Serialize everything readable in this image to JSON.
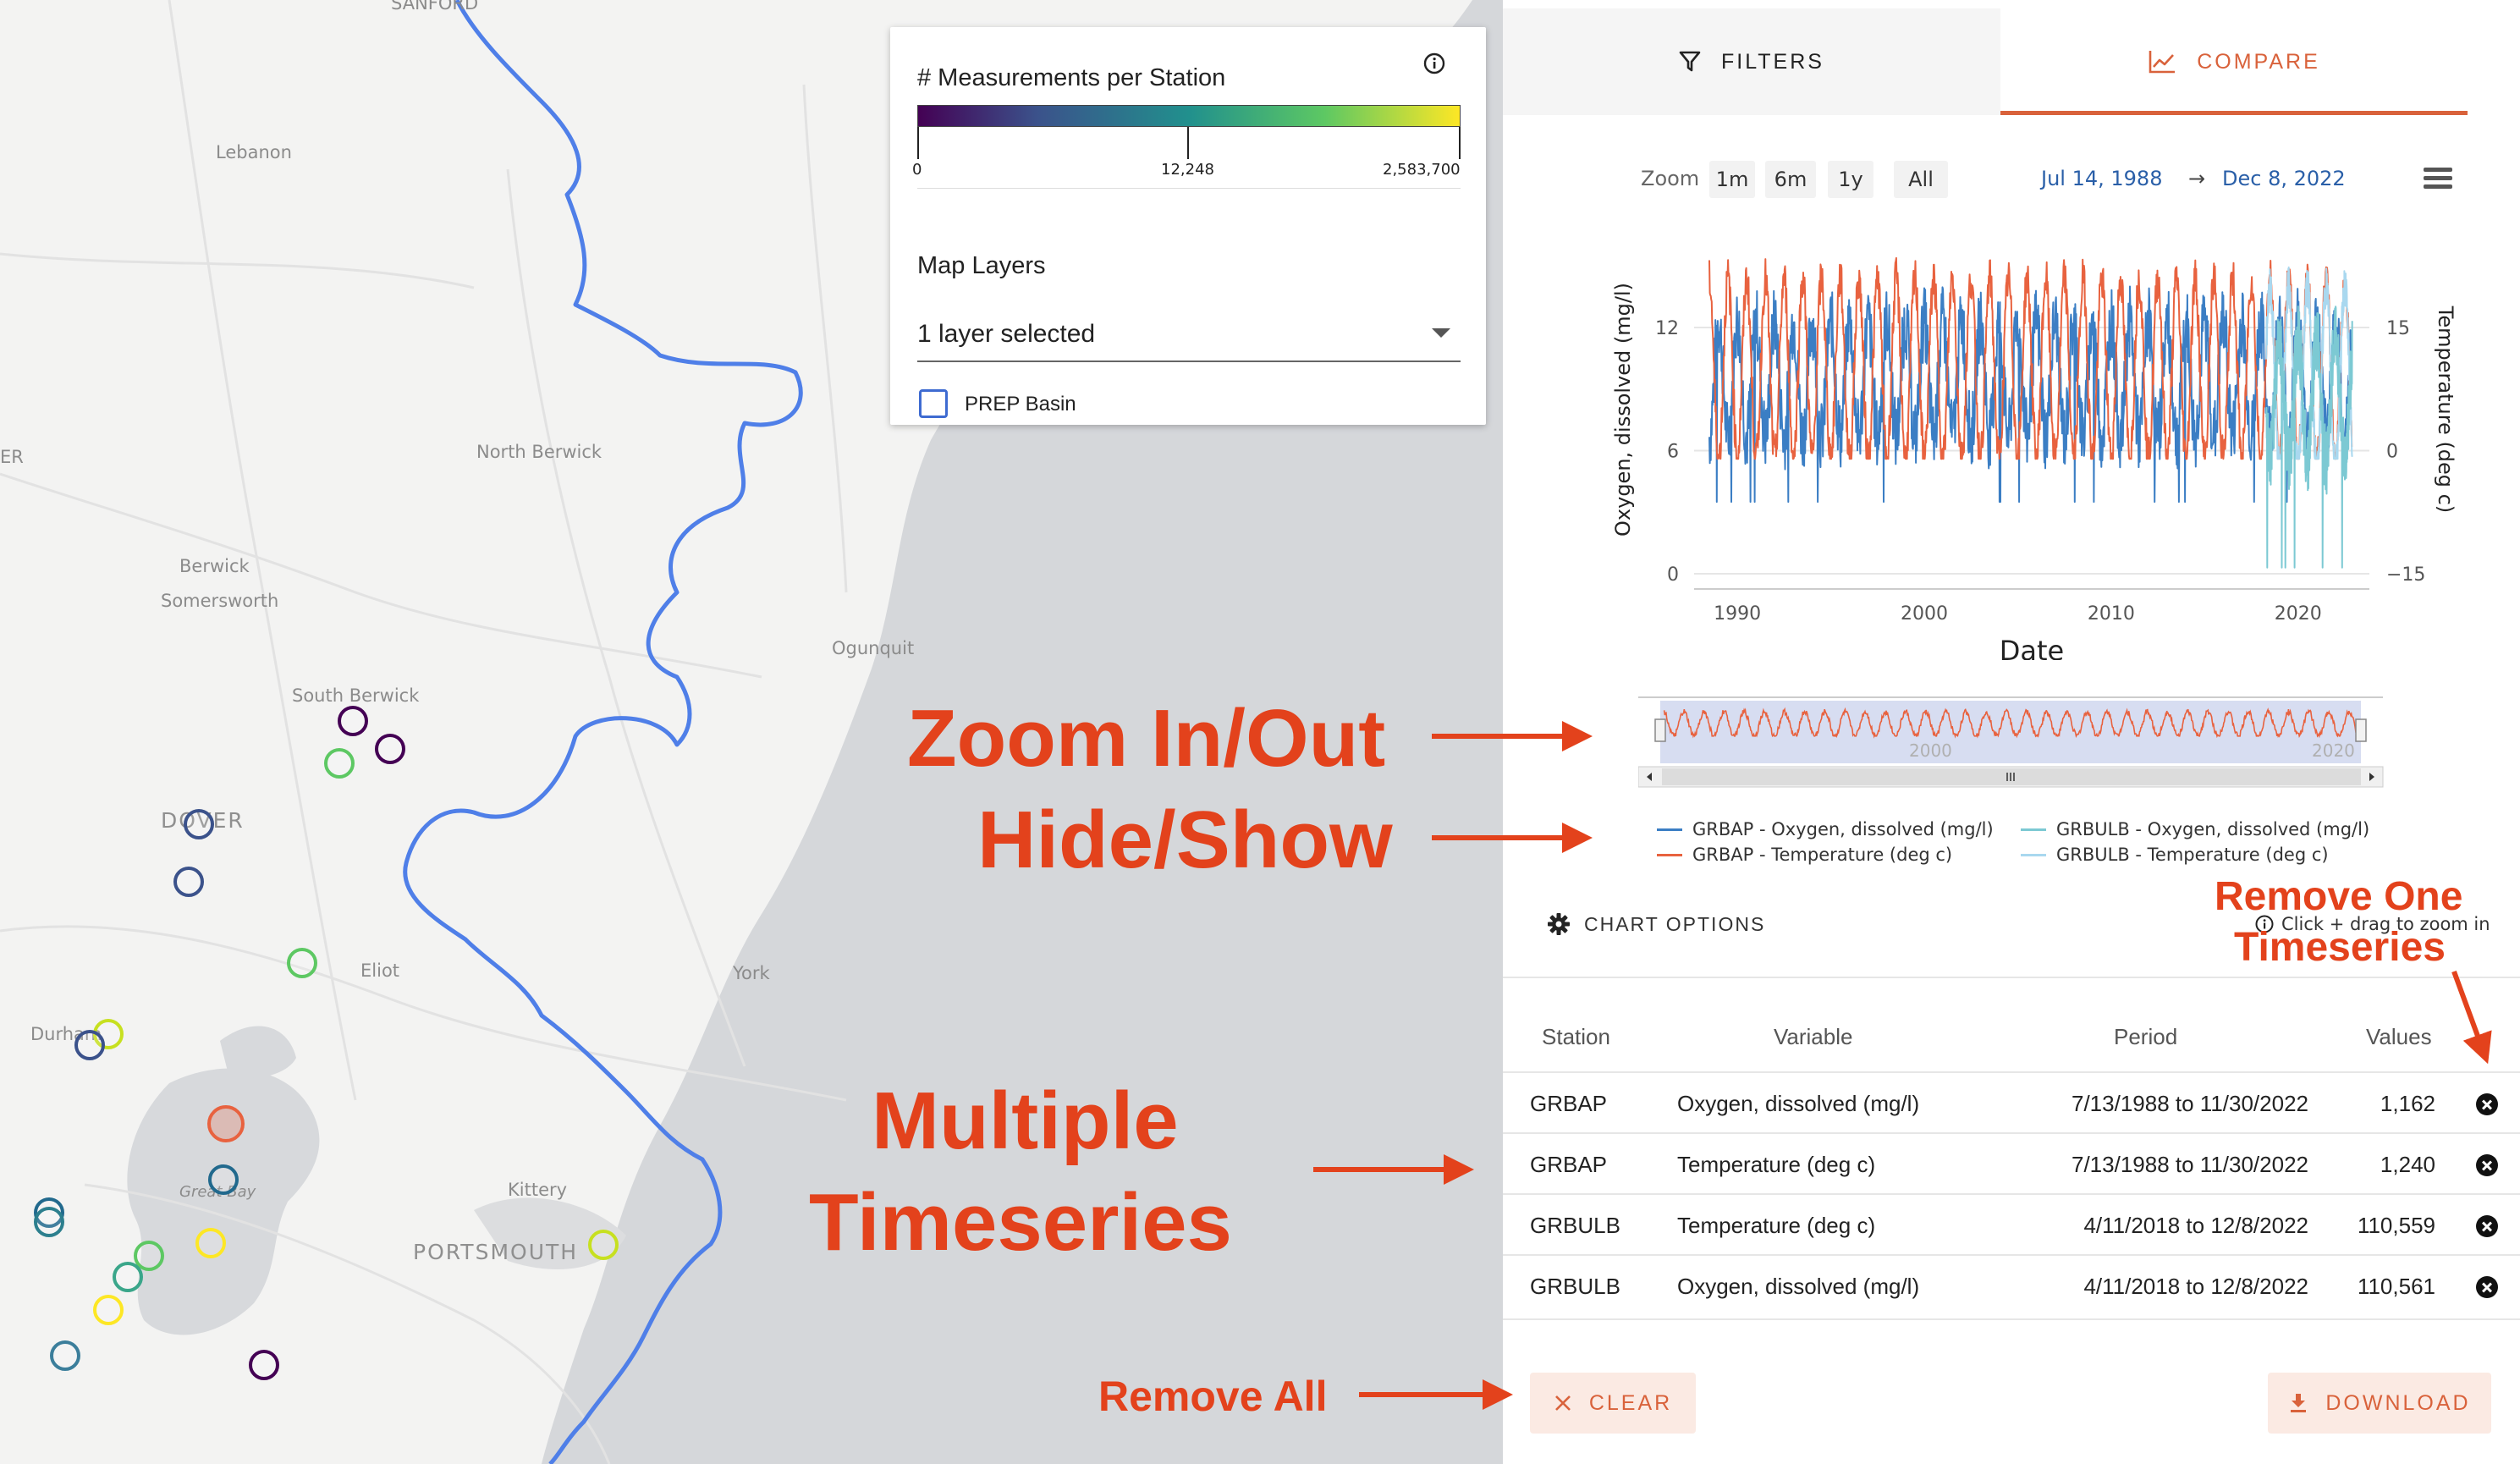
{
  "map": {
    "place_labels": [
      "Lebanon",
      "North Berwick",
      "Berwick",
      "Somersworth",
      "South Berwick",
      "Ogunquit",
      "DOVER",
      "Eliot",
      "York",
      "Durham",
      "Great Bay",
      "Kittery",
      "PORTSMOUTH",
      "SANFORD",
      "ER"
    ],
    "station_colors": [
      "#440154",
      "#3b528b",
      "#21908d",
      "#5dc863",
      "#fde725",
      "#e8623f"
    ]
  },
  "legend": {
    "title": "# Measurements per Station",
    "colorbar": {
      "min_label": "0",
      "mid_label": "12,248",
      "max_label": "2,583,700"
    },
    "layers_title": "Map Layers",
    "layers_select_value": "1 layer selected",
    "layer_option": "PREP Basin"
  },
  "tabs": {
    "filters": "FILTERS",
    "compare": "COMPARE"
  },
  "chart_controls": {
    "zoom_label": "Zoom",
    "zoom_buttons": [
      "1m",
      "6m",
      "1y",
      "All"
    ],
    "date_from": "Jul 14, 1988",
    "arrow": "→",
    "date_to": "Dec 8, 2022"
  },
  "chart_data": {
    "type": "line",
    "title": "",
    "xlabel": "Date",
    "ylabel": "Oxygen, dissolved (mg/l)",
    "y2label": "Temperature (deg c)",
    "x_range": [
      1988.5,
      2023.0
    ],
    "x_ticks": [
      1990,
      2000,
      2010,
      2020
    ],
    "x_tick_labels": [
      "1990",
      "2000",
      "2010",
      "2020"
    ],
    "y_range": [
      0,
      16
    ],
    "y_ticks": [
      0,
      6,
      12
    ],
    "y_tick_labels": [
      "0",
      "6",
      "12"
    ],
    "y2_range": [
      -15,
      25
    ],
    "y2_ticks": [
      -15,
      0,
      15
    ],
    "y2_tick_labels": [
      "−15",
      "0",
      "15"
    ],
    "navigator_labels": [
      "2000",
      "2020"
    ],
    "series": [
      {
        "name": "GRBAP - Oxygen, dissolved (mg/l)",
        "color": "#3b7ec4",
        "axis": "left",
        "x_start": 1988.5,
        "x_end": 2022.9,
        "baseline": 9.5,
        "amplitude": 2.8,
        "min": 3.5,
        "max": 14
      },
      {
        "name": "GRBAP - Temperature (deg c)",
        "color": "#e8623f",
        "axis": "right",
        "x_start": 1988.5,
        "x_end": 2022.9,
        "baseline": 10,
        "amplitude": 11,
        "min": -1,
        "max": 24
      },
      {
        "name": "GRBULB - Oxygen, dissolved (mg/l)",
        "color": "#7cc9d3",
        "axis": "left",
        "x_start": 2018.3,
        "x_end": 2022.9,
        "baseline": 8.5,
        "amplitude": 3,
        "min": 0.3,
        "max": 15.5
      },
      {
        "name": "GRBULB - Temperature (deg c)",
        "color": "#a9d8ef",
        "axis": "right",
        "x_start": 2018.3,
        "x_end": 2022.9,
        "baseline": 9,
        "amplitude": 11,
        "min": -1,
        "max": 25
      }
    ]
  },
  "chart_options_label": "CHART OPTIONS",
  "hint_text": "Click + drag to zoom in",
  "table": {
    "headers": [
      "Station",
      "Variable",
      "Period",
      "Values"
    ],
    "rows": [
      {
        "station": "GRBAP",
        "variable": "Oxygen, dissolved (mg/l)",
        "period": "7/13/1988 to 11/30/2022",
        "values": "1,162"
      },
      {
        "station": "GRBAP",
        "variable": "Temperature (deg c)",
        "period": "7/13/1988 to 11/30/2022",
        "values": "1,240"
      },
      {
        "station": "GRBULB",
        "variable": "Temperature (deg c)",
        "period": "4/11/2018 to 12/8/2022",
        "values": "110,559"
      },
      {
        "station": "GRBULB",
        "variable": "Oxygen, dissolved (mg/l)",
        "period": "4/11/2018 to 12/8/2022",
        "values": "110,561"
      }
    ]
  },
  "buttons": {
    "clear": "CLEAR",
    "download": "DOWNLOAD"
  },
  "annotations": {
    "zoom": "Zoom In/Out",
    "hideshow": "Hide/Show",
    "remove_one_1": "Remove One",
    "remove_one_2": "Timeseries",
    "multiple_1": "Multiple",
    "multiple_2": "Timeseries",
    "remove_all": "Remove All",
    "accent_color": "#e3421c"
  }
}
